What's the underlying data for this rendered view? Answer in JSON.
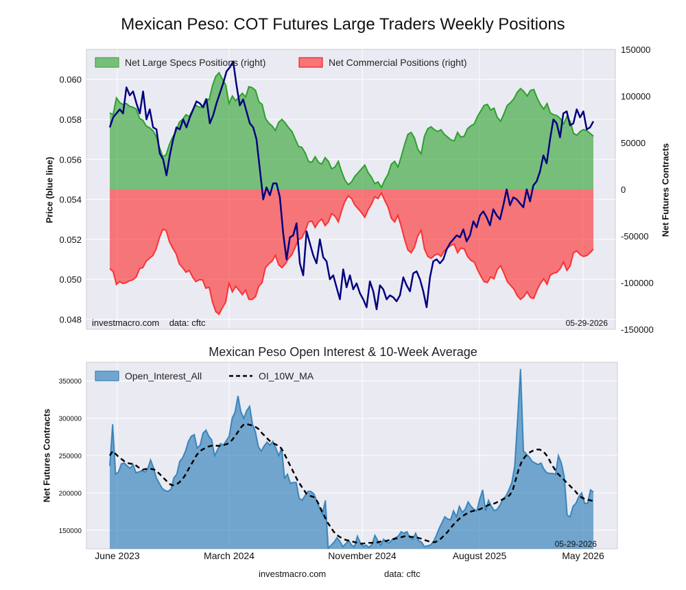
{
  "title": "Mexican Peso: COT Futures Large Traders Weekly Positions",
  "footer": {
    "site": "investmacro.com",
    "data": "data: cftc"
  },
  "chart_data": [
    {
      "type": "area",
      "title": "Mexican Peso: COT Futures Large Traders Weekly Positions",
      "ylabel": "Price (blue line)",
      "ylabel_right": "Net Futures Contracts",
      "ylim": [
        0.0475,
        0.0615
      ],
      "ylim_right": [
        -150000,
        150000
      ],
      "yticks": [
        "0.048",
        "0.050",
        "0.052",
        "0.054",
        "0.056",
        "0.058",
        "0.060"
      ],
      "yticks_right": [
        "-150000",
        "-100000",
        "-50000",
        "0",
        "50000",
        "100000",
        "150000"
      ],
      "legend": {
        "placement": "top-left",
        "entries": [
          "Net Large Specs Positions (right)",
          "Net Commercial Positions (right)"
        ]
      },
      "watermark": "investmacro.com    data: cftc",
      "date_stamp": "05-29-2026",
      "grid": true,
      "colors": {
        "specs": "#2ca02c",
        "commercial": "#ff0000",
        "price": "#000080"
      },
      "series": [
        {
          "name": "Net Large Specs Positions (right)",
          "values": [
            82000,
            80000,
            98000,
            93000,
            91000,
            92000,
            89000,
            88000,
            86000,
            76000,
            74000,
            68000,
            66000,
            63000,
            57000,
            45000,
            35000,
            37000,
            48000,
            56000,
            62000,
            72000,
            75000,
            80000,
            78000,
            85000,
            90000,
            88000,
            88000,
            97000,
            96000,
            111000,
            121000,
            125000,
            118000,
            112000,
            92000,
            100000,
            95000,
            99000,
            103000,
            99000,
            110000,
            109000,
            106000,
            94000,
            91000,
            76000,
            71000,
            68000,
            63000,
            72000,
            75000,
            71000,
            66000,
            62000,
            54000,
            46000,
            45000,
            39000,
            30000,
            29000,
            35000,
            29000,
            27000,
            34000,
            30000,
            22000,
            24000,
            30000,
            19000,
            10000,
            5000,
            8000,
            14000,
            18000,
            22000,
            26000,
            18000,
            13000,
            6000,
            8000,
            2000,
            10000,
            16000,
            27000,
            30000,
            24000,
            35000,
            48000,
            59000,
            61000,
            55000,
            43000,
            38000,
            57000,
            65000,
            67000,
            64000,
            62000,
            64000,
            59000,
            56000,
            53000,
            52000,
            61000,
            56000,
            57000,
            65000,
            68000,
            70000,
            78000,
            84000,
            90000,
            91000,
            85000,
            87000,
            77000,
            73000,
            81000,
            90000,
            93000,
            97000,
            104000,
            108000,
            105000,
            100000,
            106000,
            107000,
            98000,
            91000,
            86000,
            92000,
            82000,
            80000,
            79000,
            76000,
            70000,
            78000,
            73000,
            60000,
            58000,
            62000,
            64000,
            63000,
            60000,
            57000
          ]
        },
        {
          "name": "Net Commercial Positions (right)",
          "values": [
            -85000,
            -88000,
            -102000,
            -99000,
            -101000,
            -100000,
            -98000,
            -97000,
            -94000,
            -85000,
            -84000,
            -77000,
            -74000,
            -71000,
            -64000,
            -52000,
            -43000,
            -44000,
            -56000,
            -63000,
            -69000,
            -80000,
            -84000,
            -89000,
            -87000,
            -94000,
            -99000,
            -97000,
            -97000,
            -106000,
            -105000,
            -121000,
            -131000,
            -134000,
            -127000,
            -121000,
            -101000,
            -110000,
            -104000,
            -108000,
            -113000,
            -108000,
            -118000,
            -118000,
            -115000,
            -104000,
            -100000,
            -84000,
            -80000,
            -77000,
            -71000,
            -81000,
            -84000,
            -80000,
            -74000,
            -70000,
            -62000,
            -54000,
            -52000,
            -45000,
            -35000,
            -34000,
            -41000,
            -35000,
            -32000,
            -39000,
            -35000,
            -26000,
            -29000,
            -35000,
            -23000,
            -13000,
            -7000,
            -10000,
            -17000,
            -21000,
            -25000,
            -30000,
            -22000,
            -16000,
            -8000,
            -10000,
            -4000,
            -12000,
            -19000,
            -31000,
            -35000,
            -28000,
            -40000,
            -54000,
            -65000,
            -68000,
            -62000,
            -50000,
            -44000,
            -64000,
            -72000,
            -74000,
            -71000,
            -69000,
            -72000,
            -66000,
            -63000,
            -60000,
            -59000,
            -68000,
            -63000,
            -64000,
            -72000,
            -76000,
            -78000,
            -86000,
            -93000,
            -99000,
            -100000,
            -94000,
            -96000,
            -86000,
            -82000,
            -90000,
            -99000,
            -103000,
            -107000,
            -114000,
            -118000,
            -115000,
            -110000,
            -116000,
            -117000,
            -108000,
            -101000,
            -96000,
            -102000,
            -92000,
            -90000,
            -89000,
            -85000,
            -78000,
            -87000,
            -82000,
            -68000,
            -66000,
            -70000,
            -72000,
            -71000,
            -68000,
            -64000
          ]
        },
        {
          "name": "",
          "axis": "left",
          "values": [
            0.0576,
            0.0581,
            0.0583,
            0.0585,
            0.0583,
            0.0596,
            0.0592,
            0.0594,
            0.0588,
            0.0583,
            0.0594,
            0.058,
            0.0585,
            0.0576,
            0.0575,
            0.0563,
            0.056,
            0.0552,
            0.0562,
            0.057,
            0.0576,
            0.0575,
            0.058,
            0.0576,
            0.0581,
            0.0585,
            0.0589,
            0.0588,
            0.0586,
            0.059,
            0.0578,
            0.0582,
            0.0588,
            0.0593,
            0.0598,
            0.0604,
            0.0606,
            0.0609,
            0.0597,
            0.0587,
            0.059,
            0.0584,
            0.0578,
            0.0576,
            0.057,
            0.0555,
            0.054,
            0.0546,
            0.0542,
            0.0548,
            0.0548,
            0.0541,
            0.0523,
            0.051,
            0.0521,
            0.0522,
            0.0528,
            0.0508,
            0.0502,
            0.0524,
            0.0518,
            0.0512,
            0.0508,
            0.052,
            0.0511,
            0.0509,
            0.05,
            0.0502,
            0.0496,
            0.049,
            0.0505,
            0.0496,
            0.0502,
            0.0495,
            0.0498,
            0.0493,
            0.049,
            0.0486,
            0.0499,
            0.0494,
            0.0485,
            0.0497,
            0.0495,
            0.049,
            0.0492,
            0.0491,
            0.0489,
            0.0492,
            0.0501,
            0.0497,
            0.0494,
            0.0503,
            0.0504,
            0.05,
            0.0494,
            0.0486,
            0.0501,
            0.0509,
            0.051,
            0.0508,
            0.051,
            0.0515,
            0.0518,
            0.052,
            0.0522,
            0.0521,
            0.0525,
            0.0519,
            0.0522,
            0.0529,
            0.0526,
            0.0532,
            0.0534,
            0.0531,
            0.0527,
            0.0535,
            0.0532,
            0.053,
            0.0537,
            0.0545,
            0.0537,
            0.0541,
            0.054,
            0.0538,
            0.0536,
            0.0545,
            0.0539,
            0.0547,
            0.0549,
            0.0554,
            0.0562,
            0.0558,
            0.057,
            0.058,
            0.0578,
            0.0571,
            0.0583,
            0.0584,
            0.0577,
            0.0578,
            0.0585,
            0.0581,
            0.0584,
            0.0575,
            0.0576,
            0.0579
          ]
        }
      ]
    },
    {
      "type": "area",
      "title": "Mexican Peso Open Interest & 10-Week Average",
      "ylabel": "Net Futures Contracts",
      "ylim": [
        125000,
        375000
      ],
      "yticks": [
        "150000",
        "200000",
        "250000",
        "300000",
        "350000"
      ],
      "x_ticks": [
        "June 2023",
        "March 2024",
        "November 2024",
        "August 2025",
        "May 2026"
      ],
      "legend": {
        "placement": "top-left",
        "entries": [
          "Open_Interest_All",
          "OI_10W_MA"
        ]
      },
      "date_stamp": "05-29-2026",
      "grid": true,
      "colors": {
        "open_interest": "#1f77b4",
        "moving_average": "#000000"
      },
      "series": [
        {
          "name": "Open_Interest_All",
          "values": [
            236000,
            292000,
            225000,
            228000,
            239000,
            240000,
            236000,
            233000,
            238000,
            227000,
            228000,
            230000,
            228000,
            232000,
            244000,
            234000,
            220000,
            213000,
            206000,
            203000,
            202000,
            205000,
            220000,
            225000,
            242000,
            247000,
            256000,
            269000,
            276000,
            278000,
            260000,
            264000,
            280000,
            284000,
            276000,
            271000,
            250000,
            258000,
            266000,
            264000,
            270000,
            276000,
            300000,
            308000,
            330000,
            309000,
            300000,
            310000,
            316000,
            292000,
            282000,
            262000,
            256000,
            263000,
            268000,
            264000,
            269000,
            260000,
            250000,
            260000,
            220000,
            225000,
            213000,
            214000,
            214000,
            193000,
            190000,
            196000,
            202000,
            202000,
            199000,
            190000,
            180000,
            172000,
            190000,
            126000,
            130000,
            134000,
            140000,
            135000,
            128000,
            132000,
            136000,
            130000,
            128000,
            142000,
            133000,
            128000,
            130000,
            127000,
            131000,
            143000,
            136000,
            130000,
            138000,
            134000,
            133000,
            138000,
            140000,
            142000,
            148000,
            146000,
            148000,
            140000,
            138000,
            146000,
            136000,
            134000,
            128000,
            129000,
            130000,
            134000,
            142000,
            152000,
            160000,
            168000,
            165000,
            164000,
            176000,
            168000,
            182000,
            174000,
            178000,
            188000,
            182000,
            178000,
            176000,
            192000,
            204000,
            176000,
            190000,
            182000,
            176000,
            178000,
            184000,
            192000,
            196000,
            204000,
            214000,
            236000,
            300000,
            366000,
            256000,
            252000,
            248000,
            242000,
            240000,
            238000,
            240000,
            232000,
            227000,
            226000,
            226000,
            225000,
            250000,
            240000,
            222000,
            170000,
            168000,
            182000,
            186000,
            195000,
            200000,
            186000,
            186000,
            204000,
            201000
          ]
        },
        {
          "name": "OI_10W_MA",
          "values": [
            250000,
            256000,
            252000,
            248000,
            245000,
            242000,
            240000,
            239000,
            239000,
            236000,
            233000,
            231000,
            232000,
            232000,
            232000,
            231000,
            228000,
            224000,
            220000,
            216000,
            212000,
            210000,
            211000,
            213000,
            217000,
            222000,
            229000,
            236000,
            243000,
            250000,
            255000,
            258000,
            260000,
            262000,
            263000,
            264000,
            263000,
            263000,
            264000,
            265000,
            267000,
            271000,
            276000,
            282000,
            288000,
            292000,
            292000,
            291000,
            290000,
            288000,
            285000,
            280000,
            276000,
            272000,
            268000,
            266000,
            264000,
            262000,
            256000,
            248000,
            240000,
            232000,
            224000,
            216000,
            210000,
            204000,
            198000,
            196000,
            195000,
            192000,
            185000,
            176000,
            168000,
            160000,
            154000,
            148000,
            144000,
            141000,
            139000,
            137000,
            136000,
            135000,
            134000,
            133000,
            132000,
            132000,
            133000,
            133000,
            133000,
            133000,
            134000,
            135000,
            135000,
            136000,
            137000,
            138000,
            139000,
            140000,
            141000,
            142000,
            142000,
            141000,
            141000,
            140000,
            139000,
            138000,
            136000,
            135000,
            134000,
            134000,
            136000,
            139000,
            143000,
            147000,
            152000,
            157000,
            161000,
            165000,
            168000,
            171000,
            173000,
            175000,
            176000,
            177000,
            178000,
            180000,
            182000,
            184000,
            185000,
            186000,
            188000,
            190000,
            192000,
            194000,
            197000,
            204000,
            218000,
            232000,
            242000,
            248000,
            252000,
            255000,
            257000,
            258000,
            258000,
            256000,
            252000,
            246000,
            238000,
            232000,
            226000,
            222000,
            218000,
            214000,
            210000,
            206000,
            202000,
            197000,
            194000,
            192000,
            191000,
            190000,
            189000
          ]
        }
      ]
    }
  ]
}
